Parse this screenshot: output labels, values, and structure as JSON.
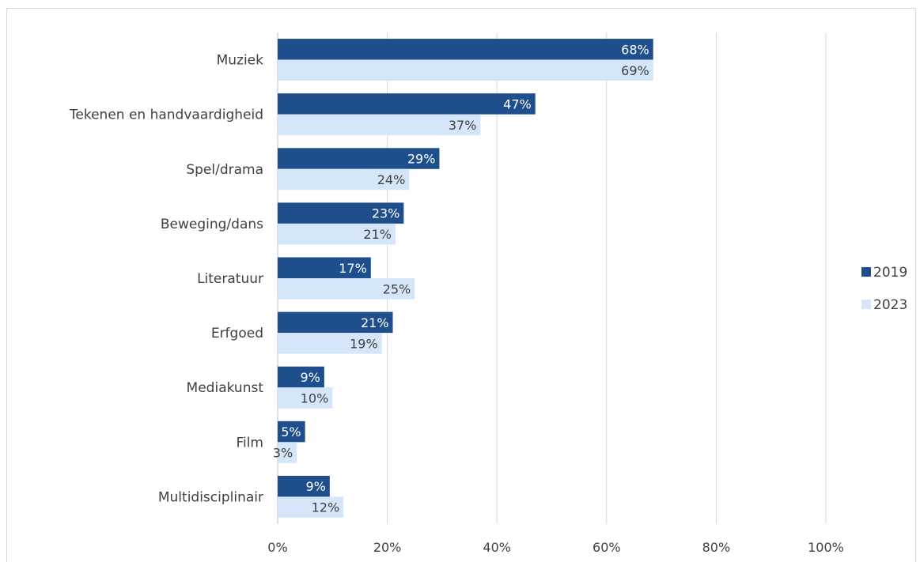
{
  "chart_data": {
    "type": "bar",
    "orientation": "horizontal",
    "title": "",
    "xlabel": "",
    "ylabel": "",
    "xlim": [
      0,
      100
    ],
    "x_ticks": [
      0,
      20,
      40,
      60,
      80,
      100
    ],
    "tick_suffix": "%",
    "grid": "vertical",
    "legend_position": "right",
    "categories": [
      "Muziek",
      "Tekenen en handvaardigheid",
      "Spel/drama",
      "Beweging/dans",
      "Literatuur",
      "Erfgoed",
      "Mediakunst",
      "Film",
      "Multidisciplinair"
    ],
    "series": [
      {
        "name": "2019",
        "color": "#1f4e8c",
        "label_color": "#ffffff",
        "values": [
          68.5,
          47,
          29.5,
          23,
          17,
          21,
          8.5,
          5,
          9.5
        ],
        "labels": [
          "68%",
          "47%",
          "29%",
          "23%",
          "17%",
          "21%",
          "9%",
          "5%",
          "9%"
        ]
      },
      {
        "name": "2023",
        "color": "#d6e6fa",
        "label_color": "#404040",
        "values": [
          68.5,
          37,
          24,
          21.5,
          25,
          19,
          10,
          3.5,
          12
        ],
        "labels": [
          "69%",
          "37%",
          "24%",
          "21%",
          "25%",
          "19%",
          "10%",
          "3%",
          "12%"
        ]
      }
    ]
  }
}
